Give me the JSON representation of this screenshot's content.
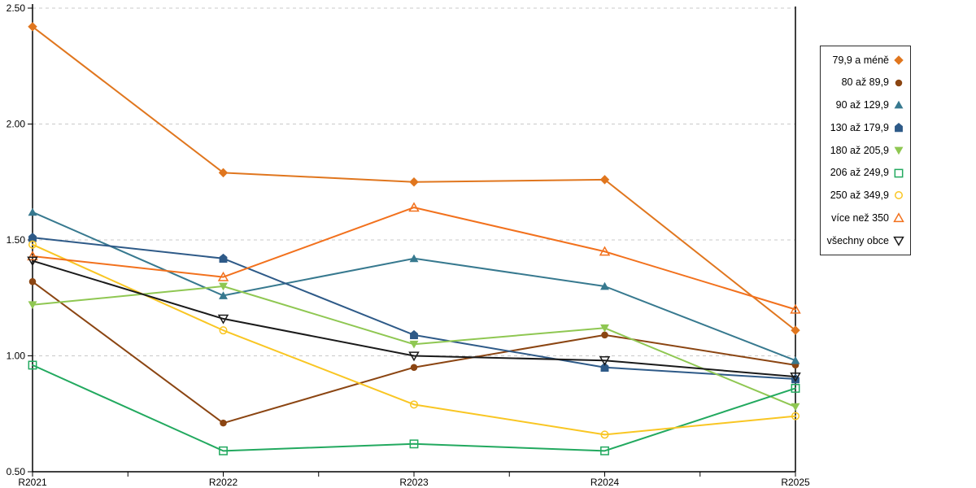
{
  "chart_data": {
    "type": "line",
    "title": "",
    "xlabel": "",
    "ylabel": "",
    "categories": [
      "R2021",
      "R2022",
      "R2023",
      "R2024",
      "R2025"
    ],
    "y_axis": {
      "min": 0.5,
      "max": 2.5,
      "step": 0.5,
      "tick_labels": [
        "0.50",
        "1.00",
        "1.50",
        "2.00",
        "2.50"
      ]
    },
    "grid": "horizontal-dashed",
    "grid_color": "#c9c9c9",
    "axis_color": "#000000",
    "legend_position": "right",
    "series": [
      {
        "name": "79,9 a méně",
        "marker": "diamond",
        "marker_fill": "filled",
        "color": "#E0761E",
        "values": [
          2.42,
          1.79,
          1.75,
          1.76,
          1.11
        ]
      },
      {
        "name": "80 až 89,9",
        "marker": "circle",
        "marker_fill": "filled",
        "color": "#8B4512",
        "values": [
          1.32,
          0.71,
          0.95,
          1.09,
          0.96
        ]
      },
      {
        "name": "90 až 129,9",
        "marker": "triangle-up",
        "marker_fill": "filled",
        "color": "#37798F",
        "values": [
          1.62,
          1.26,
          1.42,
          1.3,
          0.98
        ]
      },
      {
        "name": "130 až 179,9",
        "marker": "pentagon",
        "marker_fill": "filled",
        "color": "#2E5A88",
        "values": [
          1.51,
          1.42,
          1.09,
          0.95,
          0.9
        ]
      },
      {
        "name": "180 až 205,9",
        "marker": "triangle-down",
        "marker_fill": "filled",
        "color": "#8FC752",
        "values": [
          1.22,
          1.3,
          1.05,
          1.12,
          0.78
        ]
      },
      {
        "name": "206 až 249,9",
        "marker": "square",
        "marker_fill": "hollow",
        "color": "#22A95F",
        "values": [
          0.96,
          0.59,
          0.62,
          0.59,
          0.86
        ]
      },
      {
        "name": "250 až 349,9",
        "marker": "circle",
        "marker_fill": "hollow",
        "color": "#F9C623",
        "values": [
          1.48,
          1.11,
          0.79,
          0.66,
          0.74
        ]
      },
      {
        "name": "více než 350",
        "marker": "triangle-up",
        "marker_fill": "hollow",
        "color": "#F2711D",
        "values": [
          1.43,
          1.34,
          1.64,
          1.45,
          1.2
        ]
      },
      {
        "name": "všechny obce",
        "marker": "triangle-down",
        "marker_fill": "hollow",
        "color": "#1A1A1A",
        "values": [
          1.41,
          1.16,
          1.0,
          0.98,
          0.91
        ]
      }
    ]
  }
}
